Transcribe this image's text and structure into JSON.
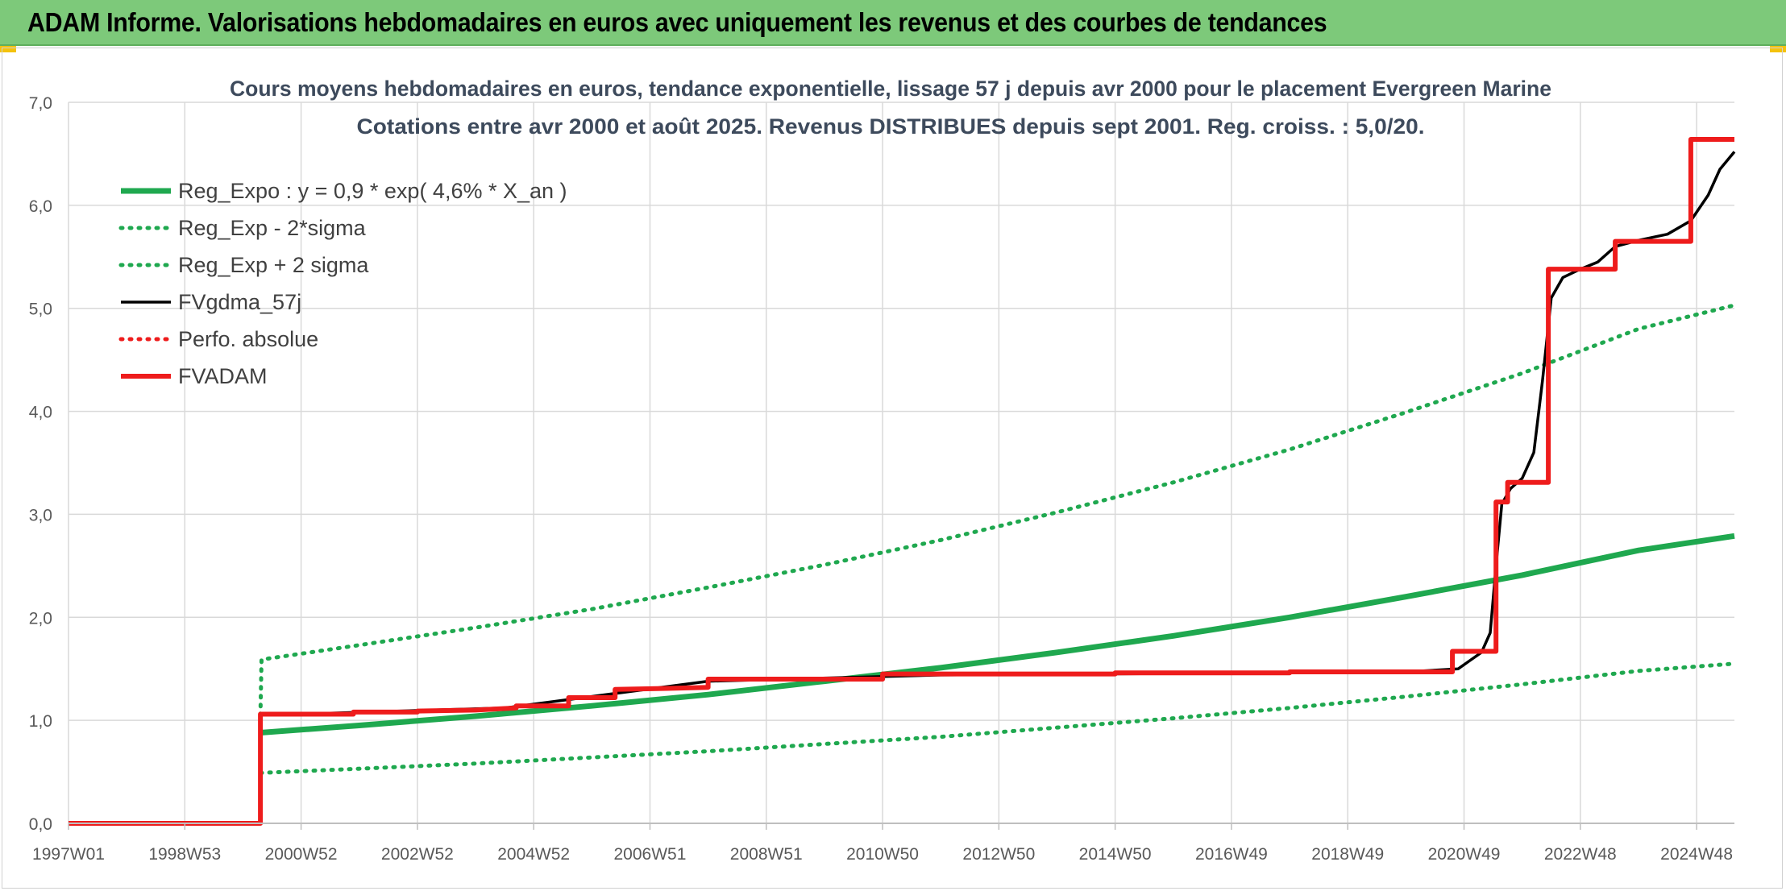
{
  "header": {
    "banner": "ADAM Informe. Valorisations hebdomadaires en euros avec uniquement les revenus et des courbes de tendances"
  },
  "colors": {
    "banner_bg": "#7dc97a",
    "green": "#1fa84f",
    "black": "#000000",
    "red": "#ee1c1c",
    "grid": "#d9d9d9"
  },
  "chart_data": {
    "type": "line",
    "title": "Cours moyens hebdomadaires en euros, tendance exponentielle, lissage 57 j depuis avr 2000 pour le placement Evergreen Marine",
    "subtitle": "Cotations entre avr 2000 et août 2025. Revenus DISTRIBUES depuis sept 2001. Reg. croiss. : 5,0/20.",
    "xlabel": "",
    "ylabel": "",
    "x_range": [
      "1997W01",
      "2025W35"
    ],
    "ylim": [
      0,
      7
    ],
    "y_ticks": [
      "0,0",
      "1,0",
      "2,0",
      "3,0",
      "4,0",
      "5,0",
      "6,0",
      "7,0"
    ],
    "x_ticks": [
      "1997W01",
      "1998W53",
      "2000W52",
      "2002W52",
      "2004W52",
      "2006W51",
      "2008W51",
      "2010W50",
      "2012W50",
      "2014W50",
      "2016W49",
      "2018W49",
      "2020W49",
      "2022W48",
      "2024W48"
    ],
    "grid": true,
    "legend_position": "top-left",
    "series": [
      {
        "name": "Reg_Expo : y = 0,9 * exp( 4,6% *  X_an )",
        "style": "solid-thick",
        "color": "#1fa84f",
        "points": [
          [
            2000.3,
            0.88
          ],
          [
            2002.0,
            0.95
          ],
          [
            2004.0,
            1.04
          ],
          [
            2006.0,
            1.14
          ],
          [
            2008.0,
            1.25
          ],
          [
            2010.0,
            1.38
          ],
          [
            2012.0,
            1.51
          ],
          [
            2014.0,
            1.66
          ],
          [
            2016.0,
            1.82
          ],
          [
            2018.0,
            2.0
          ],
          [
            2020.0,
            2.2
          ],
          [
            2022.0,
            2.41
          ],
          [
            2024.0,
            2.65
          ],
          [
            2025.65,
            2.79
          ]
        ]
      },
      {
        "name": "Reg_Exp - 2*sigma",
        "style": "dotted",
        "color": "#1fa84f",
        "points": [
          [
            2000.3,
            0.49
          ],
          [
            2002.0,
            0.53
          ],
          [
            2004.0,
            0.58
          ],
          [
            2006.0,
            0.64
          ],
          [
            2008.0,
            0.7
          ],
          [
            2010.0,
            0.77
          ],
          [
            2012.0,
            0.84
          ],
          [
            2014.0,
            0.93
          ],
          [
            2016.0,
            1.02
          ],
          [
            2018.0,
            1.12
          ],
          [
            2020.0,
            1.23
          ],
          [
            2022.0,
            1.35
          ],
          [
            2024.0,
            1.48
          ],
          [
            2025.65,
            1.55
          ]
        ]
      },
      {
        "name": "Reg_Exp + 2 sigma",
        "style": "dotted",
        "color": "#1fa84f",
        "points": [
          [
            2000.3,
            1.05
          ],
          [
            2000.32,
            1.59
          ],
          [
            2002.0,
            1.73
          ],
          [
            2004.0,
            1.9
          ],
          [
            2006.0,
            2.08
          ],
          [
            2008.0,
            2.29
          ],
          [
            2010.0,
            2.51
          ],
          [
            2012.0,
            2.75
          ],
          [
            2014.0,
            3.02
          ],
          [
            2016.0,
            3.31
          ],
          [
            2018.0,
            3.63
          ],
          [
            2020.0,
            3.99
          ],
          [
            2022.0,
            4.37
          ],
          [
            2024.0,
            4.8
          ],
          [
            2025.65,
            5.03
          ]
        ]
      },
      {
        "name": "FVgdma_57j",
        "style": "solid",
        "color": "#000000",
        "points": [
          [
            2000.3,
            1.05
          ],
          [
            2004.5,
            1.12
          ],
          [
            2008.0,
            1.38
          ],
          [
            2012.0,
            1.44
          ],
          [
            2020.0,
            1.47
          ],
          [
            2020.9,
            1.5
          ],
          [
            2021.1,
            1.58
          ],
          [
            2021.3,
            1.66
          ],
          [
            2021.45,
            1.85
          ],
          [
            2021.55,
            2.5
          ],
          [
            2021.65,
            3.1
          ],
          [
            2021.8,
            3.25
          ],
          [
            2022.0,
            3.35
          ],
          [
            2022.2,
            3.6
          ],
          [
            2022.35,
            4.3
          ],
          [
            2022.5,
            5.1
          ],
          [
            2022.7,
            5.3
          ],
          [
            2023.0,
            5.38
          ],
          [
            2023.3,
            5.45
          ],
          [
            2023.6,
            5.6
          ],
          [
            2024.0,
            5.66
          ],
          [
            2024.5,
            5.72
          ],
          [
            2024.9,
            5.85
          ],
          [
            2025.2,
            6.1
          ],
          [
            2025.4,
            6.35
          ],
          [
            2025.65,
            6.52
          ]
        ]
      },
      {
        "name": "Perfo. absolue",
        "style": "dotted",
        "color": "#ee1c1c",
        "points": []
      },
      {
        "name": "FVADAM",
        "style": "solid-thick",
        "color": "#ee1c1c",
        "points": [
          [
            1997.0,
            0.0
          ],
          [
            2000.3,
            0.0
          ],
          [
            2000.3,
            1.06
          ],
          [
            2001.9,
            1.06
          ],
          [
            2001.9,
            1.08
          ],
          [
            2003.0,
            1.08
          ],
          [
            2003.0,
            1.09
          ],
          [
            2004.0,
            1.1
          ],
          [
            2004.7,
            1.12
          ],
          [
            2004.7,
            1.14
          ],
          [
            2005.6,
            1.14
          ],
          [
            2005.6,
            1.22
          ],
          [
            2006.4,
            1.22
          ],
          [
            2006.4,
            1.3
          ],
          [
            2007.3,
            1.31
          ],
          [
            2008.0,
            1.32
          ],
          [
            2008.0,
            1.4
          ],
          [
            2011.0,
            1.4
          ],
          [
            2011.0,
            1.45
          ],
          [
            2015.0,
            1.45
          ],
          [
            2015.0,
            1.46
          ],
          [
            2018.0,
            1.46
          ],
          [
            2018.0,
            1.47
          ],
          [
            2020.8,
            1.47
          ],
          [
            2020.8,
            1.67
          ],
          [
            2021.55,
            1.67
          ],
          [
            2021.55,
            3.12
          ],
          [
            2021.75,
            3.12
          ],
          [
            2021.75,
            3.31
          ],
          [
            2022.45,
            3.31
          ],
          [
            2022.45,
            5.38
          ],
          [
            2023.6,
            5.38
          ],
          [
            2023.6,
            5.65
          ],
          [
            2024.9,
            5.65
          ],
          [
            2024.9,
            6.64
          ],
          [
            2025.65,
            6.64
          ]
        ]
      }
    ]
  }
}
